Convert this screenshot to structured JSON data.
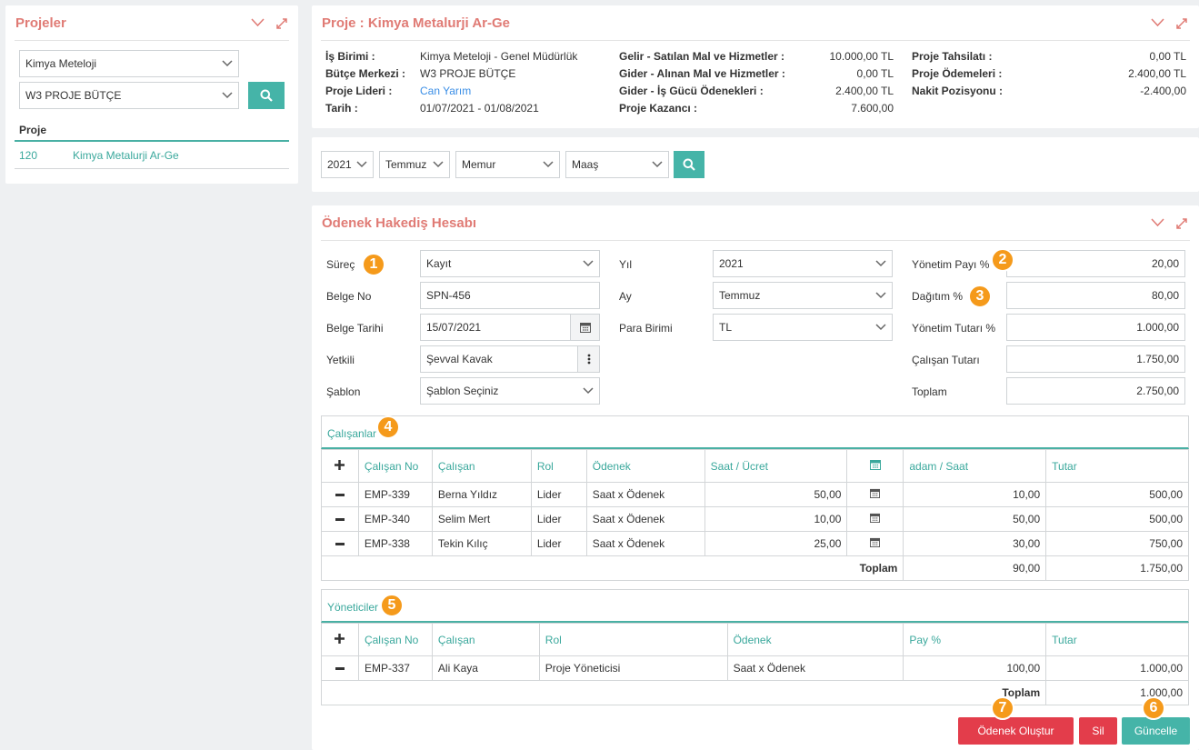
{
  "projects_panel": {
    "title": "Projeler",
    "company_select": "Kimya Meteloji",
    "budget_select": "W3 PROJE BÜTÇE",
    "list_header": "Proje",
    "rows": [
      {
        "no": "120",
        "name": "Kimya Metalurji Ar-Ge"
      }
    ]
  },
  "project_panel": {
    "title": "Proje : Kimya Metalurji Ar-Ge",
    "col1": [
      {
        "label": "İş Birimi :",
        "value": "Kimya Meteloji - Genel Müdürlük"
      },
      {
        "label": "Bütçe Merkezi :",
        "value": "W3 PROJE BÜTÇE"
      },
      {
        "label": "Proje Lideri :",
        "value": "Can Yarım"
      },
      {
        "label": "Tarih :",
        "value": "01/07/2021 - 01/08/2021"
      }
    ],
    "col2": [
      {
        "label": "Gelir - Satılan Mal ve Hizmetler :",
        "value": "10.000,00 TL"
      },
      {
        "label": "Gider - Alınan Mal ve Hizmetler :",
        "value": "0,00 TL"
      },
      {
        "label": "Gider - İş Gücü Ödenekleri :",
        "value": "2.400,00 TL"
      },
      {
        "label": "Proje Kazancı :",
        "value": "7.600,00"
      }
    ],
    "col3": [
      {
        "label": "Proje Tahsilatı :",
        "value": "0,00 TL"
      },
      {
        "label": "Proje Ödemeleri :",
        "value": "2.400,00 TL"
      },
      {
        "label": "Nakit Pozisyonu :",
        "value": "-2.400,00"
      }
    ]
  },
  "filters": {
    "year": "2021",
    "month": "Temmuz",
    "type": "Memur",
    "pay": "Maaş"
  },
  "hakedis": {
    "title": "Ödenek Hakediş Hesabı",
    "surec_label": "Süreç",
    "surec_value": "Kayıt",
    "belge_no_label": "Belge No",
    "belge_no_value": "SPN-456",
    "belge_tarihi_label": "Belge Tarihi",
    "belge_tarihi_value": "15/07/2021",
    "yetkili_label": "Yetkili",
    "yetkili_value": "Şevval Kavak",
    "sablon_label": "Şablon",
    "sablon_value": "Şablon Seçiniz",
    "yil_label": "Yıl",
    "yil_value": "2021",
    "ay_label": "Ay",
    "ay_value": "Temmuz",
    "para_label": "Para Birimi",
    "para_value": "TL",
    "yonetim_payi_label": "Yönetim Payı %",
    "yonetim_payi_value": "20,00",
    "dagitim_label": "Dağıtım %",
    "dagitim_value": "80,00",
    "yonetim_tutari_label": "Yönetim Tutarı %",
    "yonetim_tutari_value": "1.000,00",
    "calisan_tutari_label": "Çalışan Tutarı",
    "calisan_tutari_value": "1.750,00",
    "toplam_label": "Toplam",
    "toplam_value": "2.750,00"
  },
  "employees": {
    "section_label": "Çalışanlar",
    "headers": {
      "no": "Çalışan No",
      "name": "Çalışan",
      "role": "Rol",
      "allowance": "Ödenek",
      "rate": "Saat / Ücret",
      "hours": "adam / Saat",
      "amount": "Tutar"
    },
    "rows": [
      {
        "no": "EMP-339",
        "name": "Berna Yıldız",
        "role": "Lider",
        "allowance": "Saat x Ödenek",
        "rate": "50,00",
        "hours": "10,00",
        "amount": "500,00"
      },
      {
        "no": "EMP-340",
        "name": "Selim Mert",
        "role": "Lider",
        "allowance": "Saat x Ödenek",
        "rate": "10,00",
        "hours": "50,00",
        "amount": "500,00"
      },
      {
        "no": "EMP-338",
        "name": "Tekin Kılıç",
        "role": "Lider",
        "allowance": "Saat x Ödenek",
        "rate": "25,00",
        "hours": "30,00",
        "amount": "750,00"
      }
    ],
    "total_label": "Toplam",
    "total_hours": "90,00",
    "total_amount": "1.750,00"
  },
  "managers": {
    "section_label": "Yöneticiler",
    "headers": {
      "no": "Çalışan No",
      "name": "Çalışan",
      "role": "Rol",
      "allowance": "Ödenek",
      "pay": "Pay %",
      "amount": "Tutar"
    },
    "rows": [
      {
        "no": "EMP-337",
        "name": "Ali Kaya",
        "role": "Proje Yöneticisi",
        "allowance": "Saat x Ödenek",
        "pay": "100,00",
        "amount": "1.000,00"
      }
    ],
    "total_label": "Toplam",
    "total_amount": "1.000,00"
  },
  "actions": {
    "create": "Ödenek Oluştur",
    "delete": "Sil",
    "update": "Güncelle"
  },
  "badges": [
    "1",
    "2",
    "3",
    "4",
    "5",
    "6",
    "7"
  ],
  "colors": {
    "accent": "#45b4a8",
    "title": "#e07b75",
    "danger": "#e33d4b",
    "badge": "#f59a1b"
  }
}
